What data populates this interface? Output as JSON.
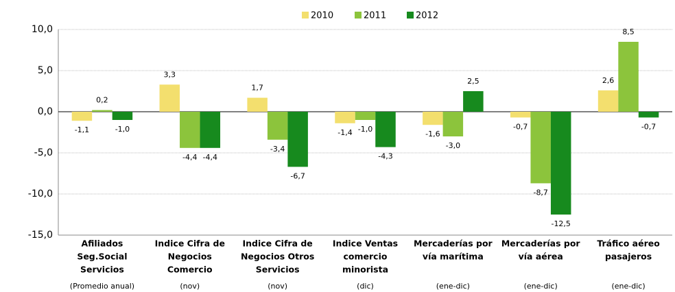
{
  "chart_data": {
    "type": "bar",
    "categories": [
      [
        "Afiliados",
        "Seg.Social",
        "Servicios"
      ],
      [
        "Indice Cifra de",
        "Negocios",
        "Comercio"
      ],
      [
        "Indice Cifra de",
        "Negocios Otros",
        "Servicios"
      ],
      [
        "Indice Ventas",
        "comercio",
        "minorista"
      ],
      [
        "Mercaderías por",
        "vía marítima"
      ],
      [
        "Mercaderías por",
        "vía aérea"
      ],
      [
        "Tráfico aéreo",
        "pasajeros"
      ]
    ],
    "sublabels": [
      "(Promedio anual)",
      "(nov)",
      "(nov)",
      "(dic)",
      "(ene-dic)",
      "(ene-dic)",
      "(ene-dic)"
    ],
    "series": [
      {
        "name": "2010",
        "color": "#f3df6e",
        "values": [
          -1.1,
          3.3,
          1.7,
          -1.4,
          -1.6,
          -0.7,
          2.6
        ],
        "value_labels": [
          "-1,1",
          "3,3",
          "1,7",
          "-1,4",
          "-1,6",
          "-0,7",
          "2,6"
        ]
      },
      {
        "name": "2011",
        "color": "#8cc43c",
        "values": [
          0.2,
          -4.4,
          -3.4,
          -1.0,
          -3.0,
          -8.7,
          8.5
        ],
        "value_labels": [
          "0,2",
          "-4,4",
          "-3,4",
          "-1,0",
          "-3,0",
          "-8,7",
          "8,5"
        ]
      },
      {
        "name": "2012",
        "color": "#178a1e",
        "values": [
          -1.0,
          -4.4,
          -6.7,
          -4.3,
          2.5,
          -12.5,
          -0.7
        ],
        "value_labels": [
          "-1,0",
          "-4,4",
          "-6,7",
          "-4,3",
          "2,5",
          "-12,5",
          "-0,7"
        ]
      }
    ],
    "ylim": [
      -15,
      10
    ],
    "yticks": [
      {
        "value": -15,
        "label": "-15,0"
      },
      {
        "value": -10,
        "label": "-10,0"
      },
      {
        "value": -5,
        "label": "-5,0"
      },
      {
        "value": 0,
        "label": "0,0"
      },
      {
        "value": 5,
        "label": "5,0"
      },
      {
        "value": 10,
        "label": "10,0"
      }
    ],
    "grid": true,
    "legend": "top"
  }
}
